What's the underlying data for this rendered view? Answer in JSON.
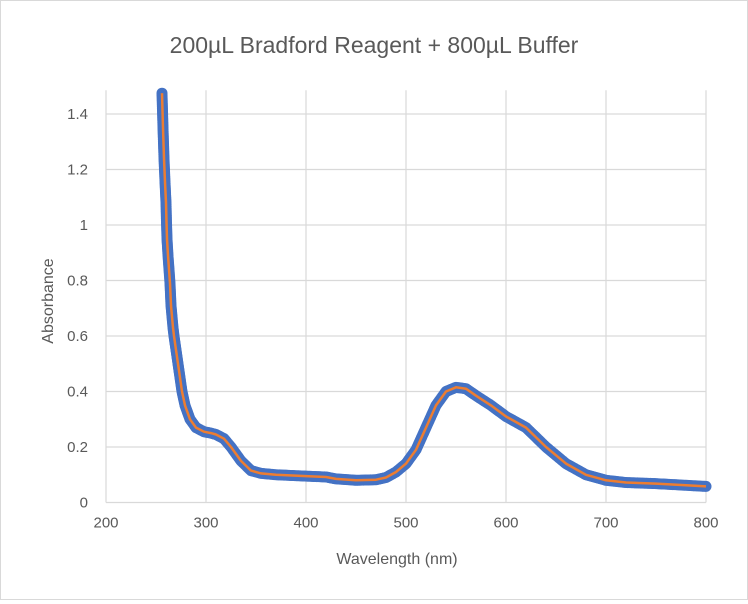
{
  "chart_data": {
    "type": "scatter",
    "title": "200µL Bradford Reagent + 800µL Buffer",
    "xlabel": "Wavelength (nm)",
    "ylabel": "Absorbance",
    "xlim": [
      200,
      800
    ],
    "ylim": [
      0,
      1.5
    ],
    "xticks": [
      200,
      300,
      400,
      500,
      600,
      700,
      800
    ],
    "yticks": [
      0,
      0.2,
      0.4,
      0.6,
      0.8,
      1,
      1.2,
      1.4
    ],
    "xtick_labels": [
      "200",
      "300",
      "400",
      "500",
      "600",
      "700",
      "800"
    ],
    "ytick_labels": [
      "0",
      "0.2",
      "0.4",
      "0.6",
      "0.8",
      "1",
      "1.2",
      "1.4"
    ],
    "grid": true,
    "legend": "none",
    "series": [
      {
        "name": "Absorbance",
        "marker_color": "#4472C4",
        "line_color": "#ED7D31",
        "x": [
          256,
          257,
          258,
          259,
          260,
          260.5,
          261,
          262,
          263,
          264,
          264.5,
          265,
          266,
          267,
          268,
          270,
          272,
          274,
          276,
          279,
          284,
          290,
          298,
          305,
          310,
          318,
          325,
          335,
          345,
          355,
          370,
          400,
          420,
          430,
          450,
          470,
          480,
          490,
          500,
          510,
          520,
          530,
          540,
          550,
          560,
          570,
          585,
          600,
          620,
          640,
          660,
          680,
          700,
          720,
          750,
          780,
          800
        ],
        "y": [
          1.475,
          1.35,
          1.24,
          1.155,
          1.08,
          1.01,
          0.95,
          0.89,
          0.84,
          0.79,
          0.75,
          0.71,
          0.67,
          0.63,
          0.6,
          0.55,
          0.5,
          0.45,
          0.4,
          0.35,
          0.3,
          0.27,
          0.255,
          0.25,
          0.245,
          0.23,
          0.2,
          0.15,
          0.115,
          0.105,
          0.1,
          0.095,
          0.092,
          0.085,
          0.08,
          0.082,
          0.09,
          0.11,
          0.14,
          0.19,
          0.27,
          0.35,
          0.4,
          0.415,
          0.41,
          0.385,
          0.35,
          0.31,
          0.27,
          0.2,
          0.14,
          0.1,
          0.08,
          0.072,
          0.068,
          0.062,
          0.058
        ]
      }
    ]
  }
}
